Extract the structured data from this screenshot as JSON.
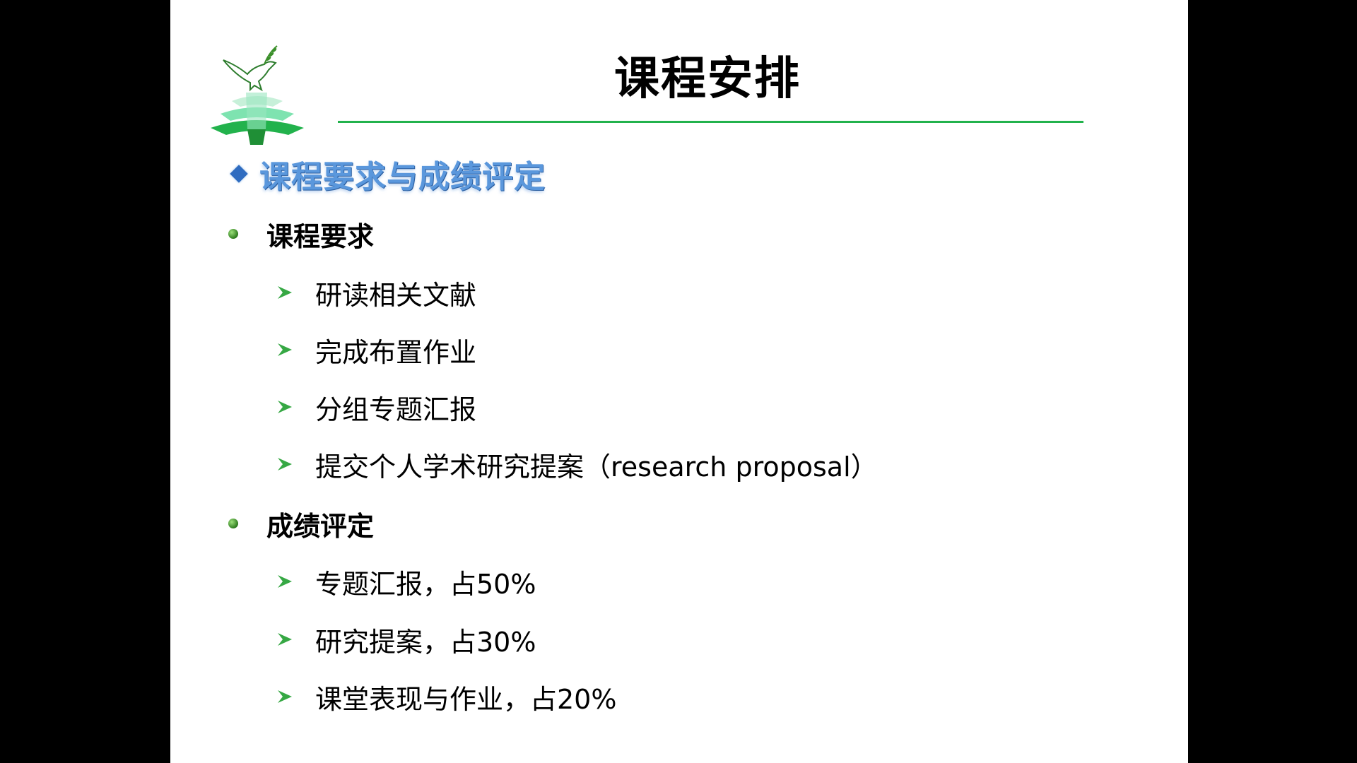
{
  "slide": {
    "title": "课程安排",
    "section_heading": "课程要求与成绩评定",
    "groups": [
      {
        "heading": "课程要求",
        "items": [
          "研读相关文献",
          "完成布置作业",
          "分组专题汇报",
          "提交个人学术研究提案（research proposal）"
        ]
      },
      {
        "heading": "成绩评定",
        "items": [
          "专题汇报，占50%",
          "研究提案，占30%",
          "课堂表现与作业，占20%"
        ]
      }
    ]
  },
  "icons": {
    "logo": "dove-tree-logo-icon",
    "section_marker": "diamond-icon",
    "group_marker": "green-dot-icon",
    "item_marker": "arrow-icon"
  },
  "colors": {
    "background": "#ffffff",
    "frame": "#000000",
    "accent_green": "#22b24c",
    "heading_blue": "#5a97dc"
  }
}
